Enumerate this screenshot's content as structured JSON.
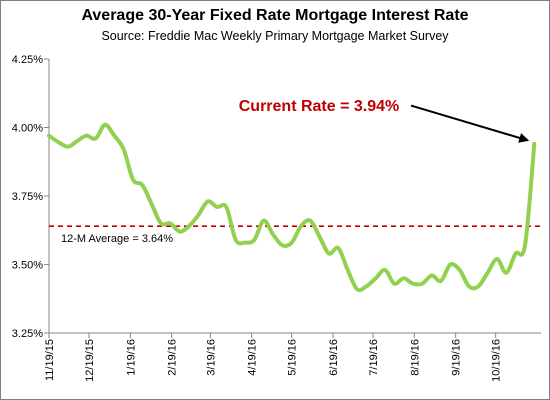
{
  "chart_data": {
    "type": "line",
    "title": "Average 30-Year Fixed Rate Mortgage Interest Rate",
    "subtitle": "Source: Freddie Mac Weekly Primary Mortgage Market Survey",
    "xlabel": "",
    "ylabel": "",
    "y_ticks": [
      "3.25%",
      "3.50%",
      "3.75%",
      "4.00%",
      "4.25%"
    ],
    "ylim": [
      3.25,
      4.25
    ],
    "x_ticks": [
      "11/19/15",
      "12/19/15",
      "1/19/16",
      "2/19/16",
      "3/19/16",
      "4/19/16",
      "5/19/16",
      "6/19/16",
      "7/19/16",
      "8/19/16",
      "9/19/16",
      "10/19/16"
    ],
    "grid": false,
    "line_color": "#92d050",
    "average_line_color": "#c00000",
    "series": [
      {
        "x": [
          "11/19/15",
          "11/25/15",
          "12/3/15",
          "12/10/15",
          "12/17/15",
          "12/24/15",
          "12/31/15",
          "1/7/16",
          "1/14/16",
          "1/21/16",
          "1/28/16",
          "2/4/16",
          "2/11/16",
          "2/18/16",
          "2/25/16",
          "3/3/16",
          "3/10/16",
          "3/17/16",
          "3/24/16",
          "3/31/16",
          "4/7/16",
          "4/14/16",
          "4/21/16",
          "4/28/16",
          "5/5/16",
          "5/12/16",
          "5/19/16",
          "5/26/16",
          "6/2/16",
          "6/9/16",
          "6/16/16",
          "6/23/16",
          "6/30/16",
          "7/7/16",
          "7/14/16",
          "7/21/16",
          "7/28/16",
          "8/4/16",
          "8/11/16",
          "8/18/16",
          "8/25/16",
          "9/1/16",
          "9/8/16",
          "9/15/16",
          "9/22/16",
          "9/29/16",
          "10/6/16",
          "10/13/16",
          "10/20/16",
          "10/27/16",
          "11/3/16",
          "11/10/16",
          "11/17/16"
        ],
        "values": [
          3.97,
          3.95,
          3.93,
          3.95,
          3.97,
          3.96,
          4.01,
          3.97,
          3.92,
          3.81,
          3.79,
          3.72,
          3.65,
          3.65,
          3.62,
          3.64,
          3.68,
          3.73,
          3.71,
          3.71,
          3.59,
          3.58,
          3.59,
          3.66,
          3.61,
          3.57,
          3.58,
          3.64,
          3.66,
          3.6,
          3.54,
          3.56,
          3.48,
          3.41,
          3.42,
          3.45,
          3.48,
          3.43,
          3.45,
          3.43,
          3.43,
          3.46,
          3.44,
          3.5,
          3.48,
          3.42,
          3.42,
          3.47,
          3.52,
          3.47,
          3.54,
          3.57,
          3.94
        ]
      }
    ],
    "reference_line": {
      "value": 3.64,
      "label": "12-M Average = 3.64%"
    },
    "annotation": {
      "text": "Current Rate = 3.94%",
      "color": "#c00000"
    }
  }
}
